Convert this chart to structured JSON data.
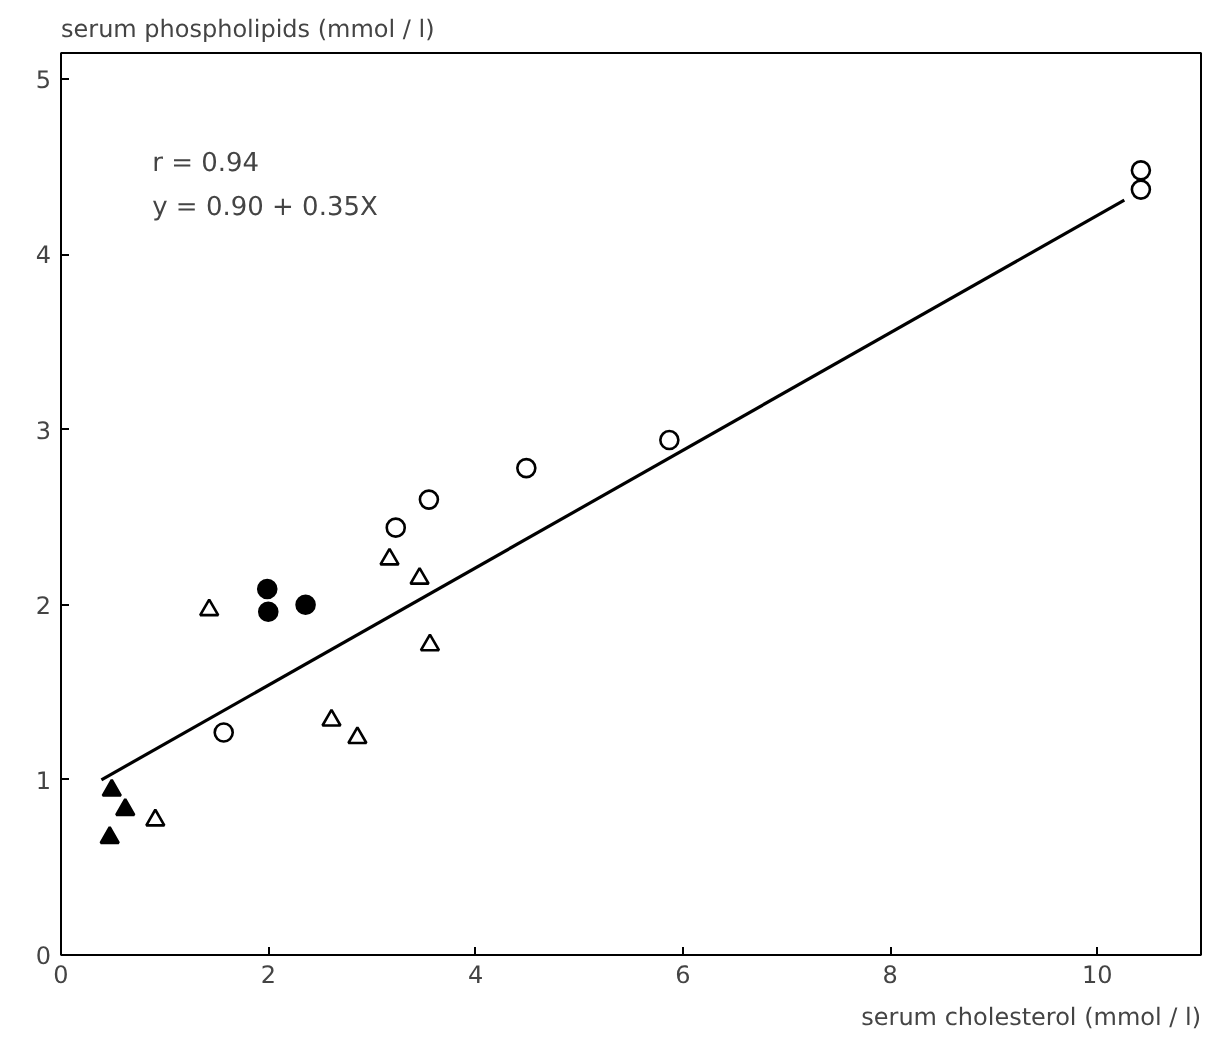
{
  "chart_data": {
    "type": "scatter",
    "xlabel": "serum cholesterol (mmol / l)",
    "ylabel": "serum phospholipids (mmol / l)",
    "annotations": [
      "r = 0.94",
      "y = 0.90 + 0.35X"
    ],
    "xlim": [
      0,
      11
    ],
    "ylim": [
      0,
      5.15
    ],
    "xticks": [
      0,
      2,
      4,
      6,
      8,
      10
    ],
    "yticks": [
      0,
      1,
      2,
      3,
      4,
      5
    ],
    "series": [
      {
        "color": "#000000",
        "marker": "circle",
        "x": [
          1.57,
          3.23,
          3.55,
          4.49,
          5.87,
          10.42,
          10.42
        ],
        "values": [
          1.27,
          2.44,
          2.6,
          2.78,
          2.94,
          4.48,
          4.37
        ]
      },
      {
        "color": "#000000",
        "marker": "circle",
        "x": [
          1.99,
          2.0,
          2.36
        ],
        "values": [
          2.09,
          1.96,
          2.0
        ]
      },
      {
        "color": "#000000",
        "marker": "triangle",
        "x": [
          0.91,
          1.43,
          3.17,
          3.46,
          3.56,
          2.61,
          2.86
        ],
        "values": [
          0.77,
          1.97,
          2.26,
          2.15,
          1.77,
          1.34,
          1.24
        ]
      },
      {
        "color": "#000000",
        "marker": "triangle",
        "x": [
          0.49,
          0.62,
          0.47
        ],
        "values": [
          0.94,
          0.83,
          0.67
        ]
      },
      {
        "type": "line",
        "color": "#000000",
        "marker": "none",
        "line_style": "solid",
        "x": [
          0.39,
          10.26
        ],
        "values": [
          1.0,
          4.31
        ]
      }
    ]
  }
}
